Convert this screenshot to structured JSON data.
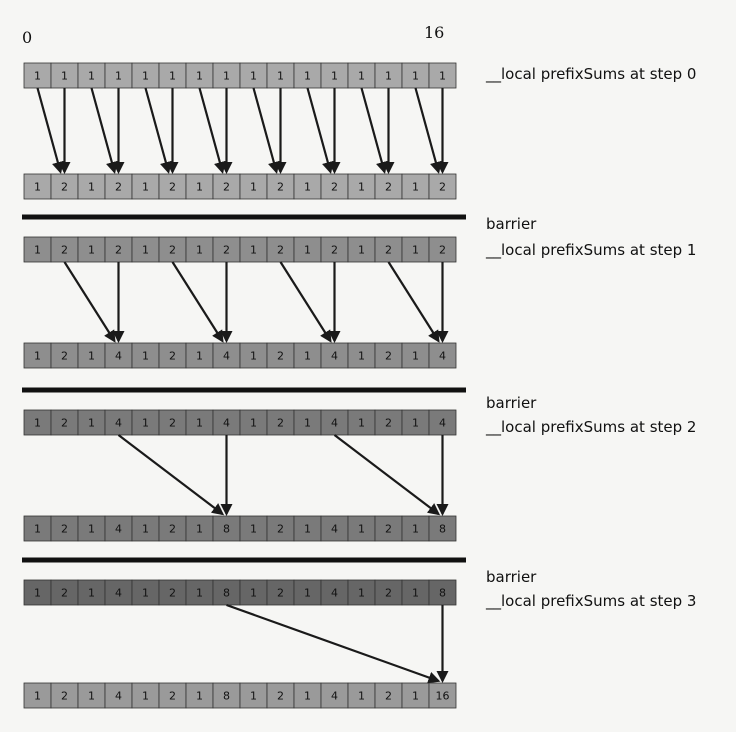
{
  "index_labels": {
    "start": "0",
    "end": "16"
  },
  "arrays": [
    {
      "values": [
        "1",
        "1",
        "1",
        "1",
        "1",
        "1",
        "1",
        "1",
        "1",
        "1",
        "1",
        "1",
        "1",
        "1",
        "1",
        "1"
      ],
      "shade": "#a9a9a9"
    },
    {
      "values": [
        "1",
        "2",
        "1",
        "2",
        "1",
        "2",
        "1",
        "2",
        "1",
        "2",
        "1",
        "2",
        "1",
        "2",
        "1",
        "2"
      ],
      "shade": "#a9a9a9"
    },
    {
      "values": [
        "1",
        "2",
        "1",
        "2",
        "1",
        "2",
        "1",
        "2",
        "1",
        "2",
        "1",
        "2",
        "1",
        "2",
        "1",
        "2"
      ],
      "shade": "#8e8e8e"
    },
    {
      "values": [
        "1",
        "2",
        "1",
        "4",
        "1",
        "2",
        "1",
        "4",
        "1",
        "2",
        "1",
        "4",
        "1",
        "2",
        "1",
        "4"
      ],
      "shade": "#8e8e8e"
    },
    {
      "values": [
        "1",
        "2",
        "1",
        "4",
        "1",
        "2",
        "1",
        "4",
        "1",
        "2",
        "1",
        "4",
        "1",
        "2",
        "1",
        "4"
      ],
      "shade": "#7a7a7a"
    },
    {
      "values": [
        "1",
        "2",
        "1",
        "4",
        "1",
        "2",
        "1",
        "8",
        "1",
        "2",
        "1",
        "4",
        "1",
        "2",
        "1",
        "8"
      ],
      "shade": "#7a7a7a"
    },
    {
      "values": [
        "1",
        "2",
        "1",
        "4",
        "1",
        "2",
        "1",
        "8",
        "1",
        "2",
        "1",
        "4",
        "1",
        "2",
        "1",
        "8"
      ],
      "shade": "#666666"
    },
    {
      "values": [
        "1",
        "2",
        "1",
        "4",
        "1",
        "2",
        "1",
        "8",
        "1",
        "2",
        "1",
        "4",
        "1",
        "2",
        "1",
        "16"
      ],
      "shade": "#9a9a9a"
    }
  ],
  "steps": [
    {
      "barrier": "",
      "label": "__local prefixSums at step 0"
    },
    {
      "barrier": "barrier",
      "label": "__local prefixSums at step 1"
    },
    {
      "barrier": "barrier",
      "label": "__local prefixSums at step 2"
    },
    {
      "barrier": "barrier",
      "label": "__local prefixSums at step 3"
    }
  ],
  "colors": {
    "arrow": "#1a1a1a",
    "barrier_line": "#111111",
    "cell_border": "#333333"
  }
}
